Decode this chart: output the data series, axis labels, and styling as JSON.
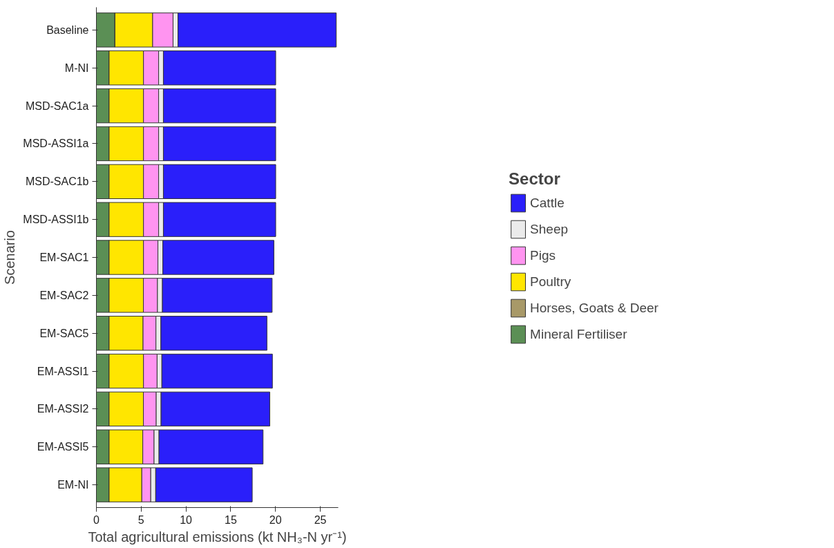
{
  "chart_data": {
    "type": "bar",
    "orientation": "horizontal",
    "stacked": true,
    "categories": [
      "Baseline",
      "M-NI",
      "MSD-SAC1a",
      "MSD-ASSI1a",
      "MSD-SAC1b",
      "MSD-ASSI1b",
      "EM-SAC1",
      "EM-SAC2",
      "EM-SAC5",
      "EM-ASSI1",
      "EM-ASSI2",
      "EM-ASSI5",
      "EM-NI"
    ],
    "series": [
      {
        "name": "Mineral Fertiliser",
        "color": "#5b8f55",
        "values": [
          2.07,
          1.42,
          1.42,
          1.42,
          1.42,
          1.42,
          1.42,
          1.42,
          1.42,
          1.42,
          1.42,
          1.42,
          1.42
        ]
      },
      {
        "name": "Horses, Goats & Deer",
        "color": "#a89968",
        "values": [
          0,
          0,
          0,
          0,
          0,
          0,
          0,
          0,
          0,
          0,
          0,
          0,
          0
        ]
      },
      {
        "name": "Poultry",
        "color": "#ffe600",
        "values": [
          4.21,
          3.84,
          3.84,
          3.84,
          3.84,
          3.84,
          3.84,
          3.83,
          3.79,
          3.84,
          3.83,
          3.76,
          3.65
        ]
      },
      {
        "name": "Pigs",
        "color": "#ff94f0",
        "values": [
          2.28,
          1.69,
          1.69,
          1.69,
          1.69,
          1.69,
          1.61,
          1.57,
          1.44,
          1.52,
          1.43,
          1.26,
          1.0
        ]
      },
      {
        "name": "Sheep",
        "color": "#ebebeb",
        "values": [
          0.55,
          0.53,
          0.53,
          0.53,
          0.53,
          0.53,
          0.55,
          0.55,
          0.55,
          0.53,
          0.54,
          0.55,
          0.55
        ]
      },
      {
        "name": "Cattle",
        "color": "#2a1ffa",
        "values": [
          17.67,
          12.54,
          12.54,
          12.54,
          12.54,
          12.54,
          12.4,
          12.25,
          11.84,
          12.34,
          12.14,
          11.62,
          10.78
        ]
      }
    ],
    "xlim": [
      0,
      27
    ],
    "xticks": [
      0,
      5,
      10,
      15,
      20,
      25
    ],
    "xlabel": "Total agricultural emissions (kt NH₃-N yr⁻¹)",
    "ylabel": "Scenario",
    "legend_title": "Sector",
    "legend": "right",
    "grid": false
  }
}
